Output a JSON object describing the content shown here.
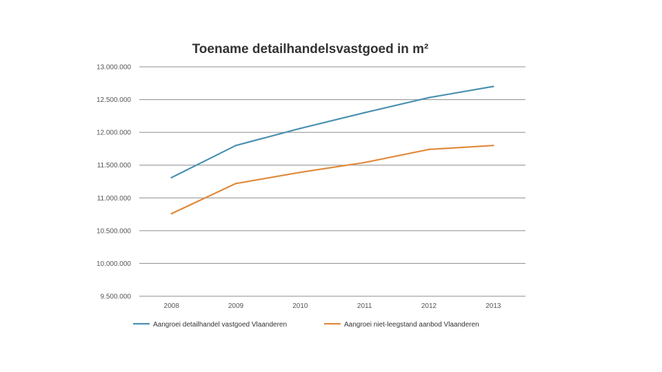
{
  "chart_data": {
    "type": "line",
    "title": "Toename detailhandelsvastgoed in m²",
    "xlabel": "",
    "ylabel": "",
    "categories": [
      "2008",
      "2009",
      "2010",
      "2011",
      "2012",
      "2013"
    ],
    "ylim": [
      9500000,
      13000000
    ],
    "yticks": [
      9500000,
      10000000,
      10500000,
      11000000,
      11500000,
      12000000,
      12500000,
      13000000
    ],
    "ytick_labels": [
      "9.500.000",
      "10.000.000",
      "10.500.000",
      "11.000.000",
      "11.500.000",
      "12.000.000",
      "12.500.000",
      "13.000.000"
    ],
    "grid": true,
    "legend_position": "bottom",
    "series": [
      {
        "name": "Aangroei detailhandel vastgoed Vlaanderen",
        "color": "#4a90b0",
        "values": [
          11310000,
          11800000,
          12060000,
          12300000,
          12530000,
          12700000
        ]
      },
      {
        "name": "Aangroei niet-leegstand aanbod Vlaanderen",
        "color": "#e08a3c",
        "values": [
          10760000,
          11220000,
          11390000,
          11540000,
          11740000,
          11800000
        ]
      }
    ]
  }
}
